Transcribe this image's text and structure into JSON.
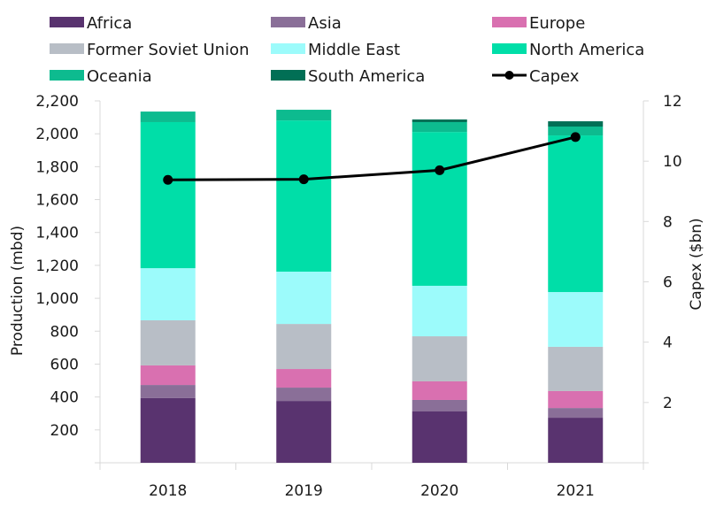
{
  "chart_data": {
    "type": "bar",
    "stacked": true,
    "title": "",
    "categories": [
      "2018",
      "2019",
      "2020",
      "2021"
    ],
    "xlabel": "",
    "ylabel": "Production (mbd)",
    "ylim": [
      0,
      2200
    ],
    "yticks": [
      200,
      400,
      600,
      800,
      1000,
      1200,
      1400,
      1600,
      1800,
      2000,
      2200
    ],
    "ytick_labels": [
      "200",
      "400",
      "600",
      "800",
      "1,000",
      "1,200",
      "1,400",
      "1,600",
      "1,800",
      "2,000",
      "2,200"
    ],
    "y2label": "Capex ($bn)",
    "y2lim": [
      0,
      12
    ],
    "y2ticks": [
      2,
      4,
      6,
      8,
      10,
      12
    ],
    "y2tick_labels": [
      "2",
      "4",
      "6",
      "8",
      "10",
      "12"
    ],
    "grid": false,
    "legend_position": "top",
    "series": [
      {
        "name": "Africa",
        "color": "#59336f",
        "values": [
          393,
          376,
          312,
          274
        ]
      },
      {
        "name": "Asia",
        "color": "#8a6f98",
        "values": [
          80,
          81,
          70,
          59
        ]
      },
      {
        "name": "Europe",
        "color": "#d970b0",
        "values": [
          119,
          113,
          113,
          103
        ]
      },
      {
        "name": "Former Soviet Union",
        "color": "#b8bec6",
        "values": [
          274,
          274,
          274,
          269
        ]
      },
      {
        "name": "Middle East",
        "color": "#9cfbfb",
        "values": [
          317,
          318,
          307,
          333
        ]
      },
      {
        "name": "North America",
        "color": "#00dea8",
        "values": [
          888,
          919,
          935,
          952
        ]
      },
      {
        "name": "Oceania",
        "color": "#0dbb8f",
        "values": [
          64,
          65,
          60,
          54
        ]
      },
      {
        "name": "South America",
        "color": "#016f55",
        "values": [
          0,
          0,
          16,
          32
        ]
      }
    ],
    "line_series": [
      {
        "name": "Capex",
        "color": "#000000",
        "axis": "right",
        "values": [
          9.38,
          9.4,
          9.7,
          10.8
        ]
      }
    ]
  }
}
